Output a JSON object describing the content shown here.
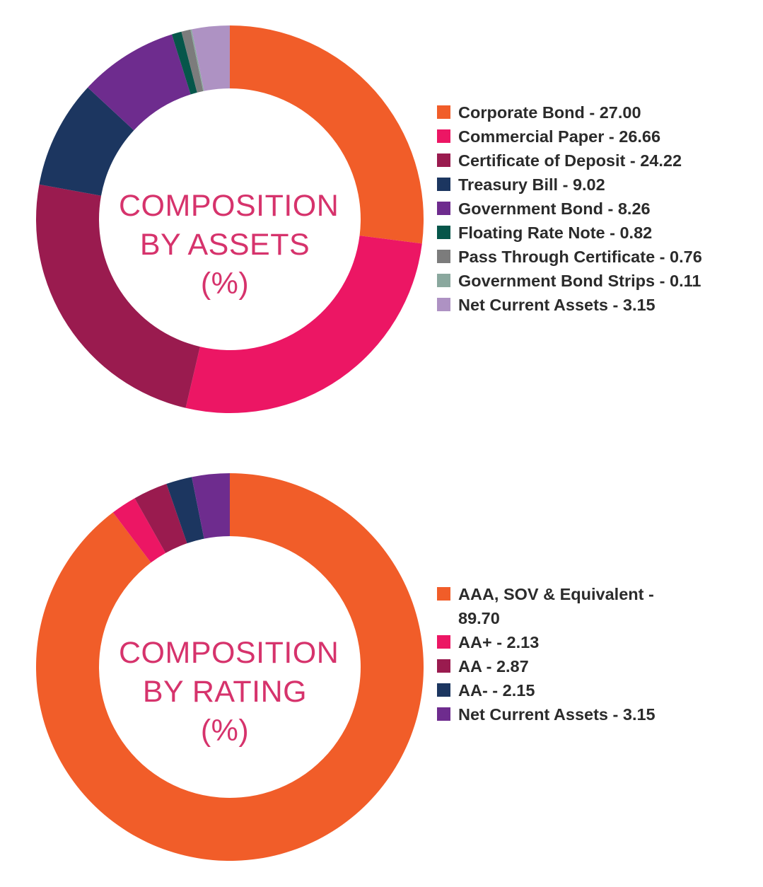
{
  "chart_data": [
    {
      "type": "pie",
      "title": "COMPOSITION BY ASSETS (%)",
      "title_lines": [
        "COMPOSITION",
        "BY ASSETS",
        "(%)"
      ],
      "categories": [
        "Corporate Bond",
        "Commercial Paper",
        "Certificate of Deposit",
        "Treasury Bill",
        "Government Bond",
        "Floating Rate Note",
        "Pass Through Certificate",
        "Government Bond Strips",
        "Net Current Assets"
      ],
      "values": [
        27.0,
        26.66,
        24.22,
        9.02,
        8.26,
        0.82,
        0.76,
        0.11,
        3.15
      ],
      "labels": [
        "Corporate Bond - 27.00",
        "Commercial Paper - 26.66",
        "Certificate of Deposit - 24.22",
        "Treasury Bill - 9.02",
        "Government Bond - 8.26",
        "Floating Rate Note - 0.82",
        "Pass Through Certificate - 0.76",
        "Government Bond Strips - 0.11",
        "Net Current Assets - 3.15"
      ],
      "colors": [
        "#f15d29",
        "#ec1664",
        "#9a1b4f",
        "#1c3660",
        "#6e2c8e",
        "#06564a",
        "#7c7c7c",
        "#8aa89e",
        "#ae92c3"
      ],
      "legend_position": "right"
    },
    {
      "type": "pie",
      "title": "COMPOSITION BY RATING (%)",
      "title_lines": [
        "COMPOSITION",
        "BY RATING",
        "(%)"
      ],
      "categories": [
        "AAA, SOV & Equivalent",
        "AA+",
        "AA",
        "AA-",
        "Net Current Assets"
      ],
      "values": [
        89.7,
        2.13,
        2.87,
        2.15,
        3.15
      ],
      "labels": [
        "AAA, SOV & Equivalent - 89.70",
        "AA+ - 2.13",
        "AA - 2.87",
        "AA- - 2.15",
        "Net Current Assets - 3.15"
      ],
      "colors": [
        "#f15d29",
        "#ec1664",
        "#9a1b4f",
        "#1c3660",
        "#6e2c8e"
      ],
      "legend_position": "right"
    }
  ]
}
